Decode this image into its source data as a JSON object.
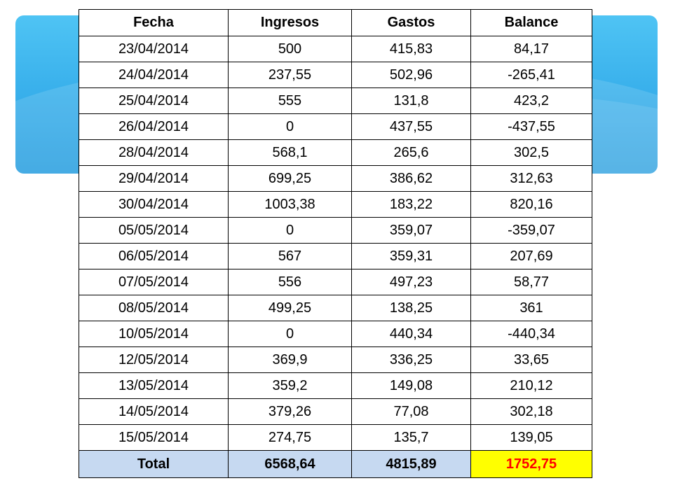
{
  "colors": {
    "banner_top": "#4fc4f4",
    "banner_bottom": "#2a9fe0",
    "total_row_bg": "#c6d9f1",
    "highlight_bg": "#ffff00",
    "highlight_text": "#ff0000"
  },
  "table": {
    "headers": [
      "Fecha",
      "Ingresos",
      "Gastos",
      "Balance"
    ],
    "rows": [
      [
        "23/04/2014",
        "500",
        "415,83",
        "84,17"
      ],
      [
        "24/04/2014",
        "237,55",
        "502,96",
        "-265,41"
      ],
      [
        "25/04/2014",
        "555",
        "131,8",
        "423,2"
      ],
      [
        "26/04/2014",
        "0",
        "437,55",
        "-437,55"
      ],
      [
        "28/04/2014",
        "568,1",
        "265,6",
        "302,5"
      ],
      [
        "29/04/2014",
        "699,25",
        "386,62",
        "312,63"
      ],
      [
        "30/04/2014",
        "1003,38",
        "183,22",
        "820,16"
      ],
      [
        "05/05/2014",
        "0",
        "359,07",
        "-359,07"
      ],
      [
        "06/05/2014",
        "567",
        "359,31",
        "207,69"
      ],
      [
        "07/05/2014",
        "556",
        "497,23",
        "58,77"
      ],
      [
        "08/05/2014",
        "499,25",
        "138,25",
        "361"
      ],
      [
        "10/05/2014",
        "0",
        "440,34",
        "-440,34"
      ],
      [
        "12/05/2014",
        "369,9",
        "336,25",
        "33,65"
      ],
      [
        "13/05/2014",
        "359,2",
        "149,08",
        "210,12"
      ],
      [
        "14/05/2014",
        "379,26",
        "77,08",
        "302,18"
      ],
      [
        "15/05/2014",
        "274,75",
        "135,7",
        "139,05"
      ]
    ],
    "total": [
      "Total",
      "6568,64",
      "4815,89",
      "1752,75"
    ]
  }
}
